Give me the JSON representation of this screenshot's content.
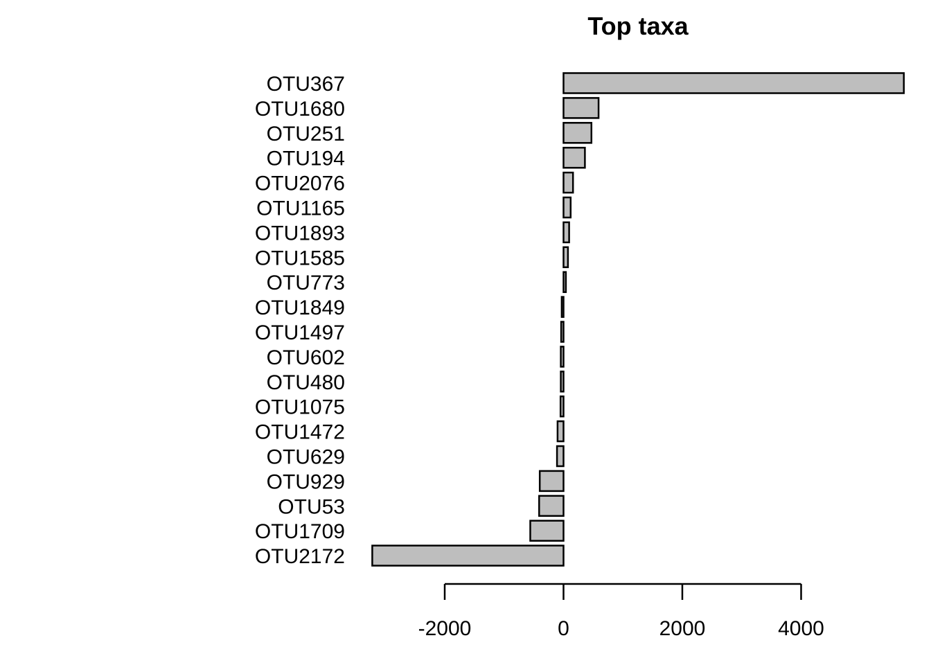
{
  "chart_data": {
    "type": "bar",
    "orientation": "horizontal",
    "title": "Top taxa",
    "xlabel": "",
    "ylabel": "",
    "categories": [
      "OTU367",
      "OTU1680",
      "OTU251",
      "OTU194",
      "OTU2076",
      "OTU1165",
      "OTU1893",
      "OTU1585",
      "OTU773",
      "OTU1849",
      "OTU1497",
      "OTU602",
      "OTU480",
      "OTU1075",
      "OTU1472",
      "OTU629",
      "OTU929",
      "OTU53",
      "OTU1709",
      "OTU2172"
    ],
    "values": [
      5730,
      590,
      470,
      360,
      160,
      120,
      95,
      75,
      40,
      -30,
      -40,
      -45,
      -45,
      -50,
      -100,
      -110,
      -400,
      -410,
      -560,
      -3220
    ],
    "xticks": [
      -2000,
      0,
      2000,
      4000
    ],
    "xtick_labels": [
      "-2000",
      "0",
      "2000",
      "4000"
    ],
    "xlim": [
      -3220,
      5730
    ],
    "bar_color": "#bebebe",
    "grid": false,
    "legend": "none"
  }
}
